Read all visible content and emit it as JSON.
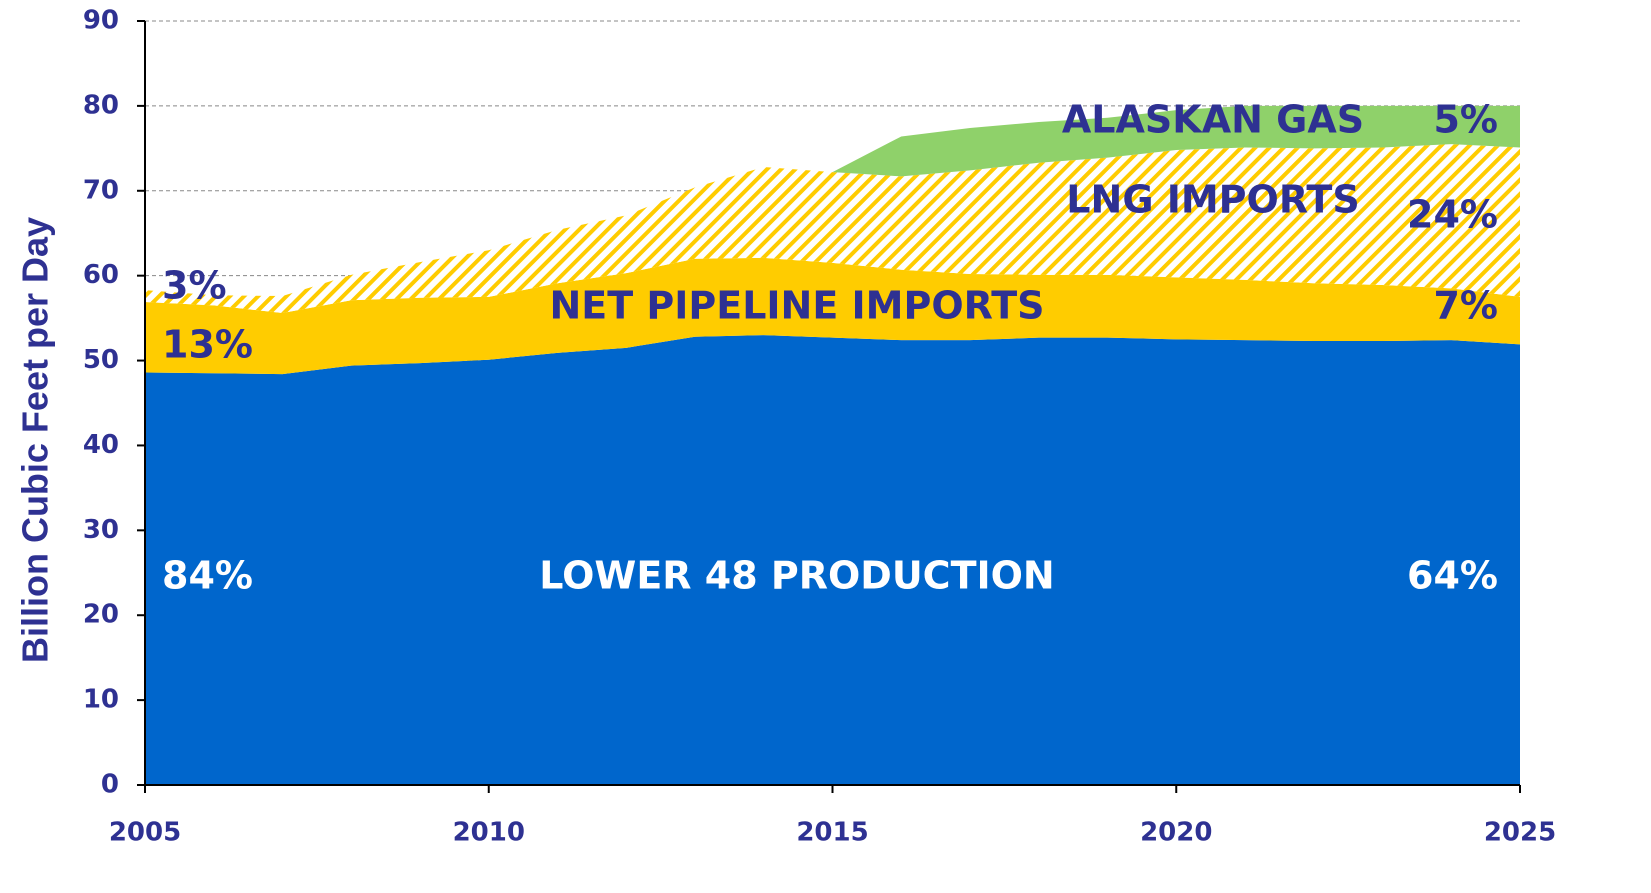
{
  "chart_data": {
    "type": "stacked_area",
    "ylabel": "Billion Cubic Feet per Day",
    "x": [
      2005,
      2006,
      2007,
      2008,
      2009,
      2010,
      2011,
      2012,
      2013,
      2014,
      2015,
      2016,
      2017,
      2018,
      2019,
      2020,
      2021,
      2022,
      2023,
      2024,
      2025
    ],
    "xlim": [
      2005,
      2025
    ],
    "xticks": [
      2005,
      2010,
      2015,
      2020,
      2025
    ],
    "ylim": [
      0,
      90
    ],
    "yticks": [
      0,
      10,
      20,
      30,
      40,
      50,
      60,
      70,
      80,
      90
    ],
    "grid": true,
    "series": [
      {
        "name": "LOWER 48 PRODUCTION",
        "color": "#0066cc",
        "values": [
          48.6,
          48.5,
          48.4,
          49.4,
          49.7,
          50.1,
          50.9,
          51.5,
          52.8,
          53.0,
          52.7,
          52.4,
          52.4,
          52.7,
          52.7,
          52.5,
          52.4,
          52.3,
          52.3,
          52.4,
          51.9
        ]
      },
      {
        "name": "NET PIPELINE IMPORTS",
        "color": "#ffcc00",
        "values": [
          8.3,
          8.0,
          7.2,
          7.7,
          7.7,
          7.4,
          8.2,
          8.8,
          9.2,
          9.1,
          8.8,
          8.3,
          7.8,
          7.4,
          7.4,
          7.3,
          7.1,
          6.8,
          6.6,
          6.1,
          5.6
        ]
      },
      {
        "name": "LNG IMPORTS",
        "color": "#ffcc00",
        "pattern": "hatch",
        "values": [
          1.4,
          1.2,
          2.0,
          3.0,
          4.2,
          5.5,
          6.3,
          6.8,
          8.4,
          10.7,
          10.7,
          11.0,
          12.2,
          13.2,
          13.8,
          15.0,
          15.6,
          15.9,
          16.2,
          17.0,
          17.6
        ]
      },
      {
        "name": "ALASKAN GAS",
        "color": "#8fd16a",
        "values": [
          0,
          0,
          0,
          0,
          0,
          0,
          0,
          0,
          0,
          0,
          0,
          4.7,
          5.0,
          4.8,
          4.7,
          4.7,
          4.9,
          5.0,
          4.9,
          4.5,
          4.9
        ]
      }
    ],
    "annotations": [
      "ALASKAN GAS",
      "5%",
      "LNG IMPORTS",
      "24%",
      "3%",
      "NET PIPELINE IMPORTS",
      "7%",
      "13%",
      "84%",
      "LOWER 48 PRODUCTION",
      "64%"
    ]
  }
}
